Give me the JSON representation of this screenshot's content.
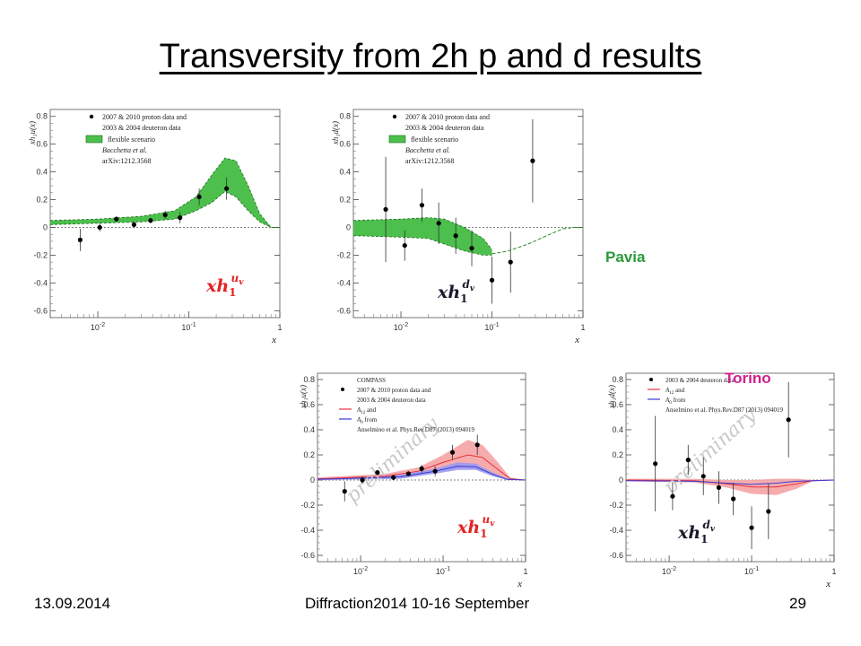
{
  "slide": {
    "title": "Transversity from 2h p and d results",
    "footer_date": "13.09.2014",
    "footer_conference": "Diffraction2014 10-16 September",
    "footer_page": "29",
    "label_pavia": "Pavia",
    "label_torino": "Torino"
  },
  "colors": {
    "pavia_band": "#4cbf4c",
    "torino_band_proton": "#f5a3a3",
    "torino_band_deuteron_blue": "#9a9af0",
    "curve_red": "#e8303a",
    "curve_blue": "#3a3ad8",
    "label_red": "#e52222",
    "label_dark": "#1a1a2e"
  },
  "chart_data": [
    {
      "type": "scatter",
      "panel": "pavia-proton",
      "xscale": "log",
      "xlim": [
        0.003,
        1
      ],
      "ylim": [
        -0.65,
        0.85
      ],
      "xlabel": "x",
      "ylabel": "xh_1^u(x)",
      "xticklabels": [
        "10^-2",
        "10^-1",
        "1"
      ],
      "yticks": [
        -0.6,
        -0.4,
        -0.2,
        0,
        0.2,
        0.4,
        0.6,
        0.8
      ],
      "yticklabels": [
        "-0.6",
        "-0.4",
        "-0.2",
        "0",
        "0.2",
        "0.4",
        "0.6",
        "0.8"
      ],
      "legend": [
        "2007 & 2010 proton data and",
        "2003 & 2004 deuteron data",
        "flexible scenario",
        "Bacchetta et al.",
        "arXiv:1212.3568"
      ],
      "annotation": {
        "main": "xh",
        "sub": "1",
        "sup": "u",
        "sup_sub": "v"
      },
      "points": [
        {
          "x": 0.0064,
          "y": -0.09,
          "err": 0.08
        },
        {
          "x": 0.0105,
          "y": 0.0,
          "err": 0.03
        },
        {
          "x": 0.016,
          "y": 0.06,
          "err": 0.02
        },
        {
          "x": 0.025,
          "y": 0.02,
          "err": 0.02
        },
        {
          "x": 0.038,
          "y": 0.05,
          "err": 0.02
        },
        {
          "x": 0.055,
          "y": 0.09,
          "err": 0.03
        },
        {
          "x": 0.08,
          "y": 0.07,
          "err": 0.04
        },
        {
          "x": 0.13,
          "y": 0.22,
          "err": 0.06
        },
        {
          "x": 0.26,
          "y": 0.28,
          "err": 0.08
        }
      ],
      "band": [
        {
          "x": 0.003,
          "lo": 0.02,
          "hi": 0.05
        },
        {
          "x": 0.01,
          "lo": 0.03,
          "hi": 0.06
        },
        {
          "x": 0.03,
          "lo": 0.04,
          "hi": 0.08
        },
        {
          "x": 0.07,
          "lo": 0.06,
          "hi": 0.12
        },
        {
          "x": 0.12,
          "lo": 0.12,
          "hi": 0.22
        },
        {
          "x": 0.18,
          "lo": 0.18,
          "hi": 0.38
        },
        {
          "x": 0.25,
          "lo": 0.26,
          "hi": 0.5
        },
        {
          "x": 0.33,
          "lo": 0.22,
          "hi": 0.48
        },
        {
          "x": 0.45,
          "lo": 0.12,
          "hi": 0.3
        },
        {
          "x": 0.6,
          "lo": 0.04,
          "hi": 0.1
        },
        {
          "x": 0.8,
          "lo": 0.0,
          "hi": 0.0
        },
        {
          "x": 1.0,
          "lo": 0.0,
          "hi": 0.0
        }
      ]
    },
    {
      "type": "scatter",
      "panel": "pavia-deuteron",
      "xscale": "log",
      "xlim": [
        0.003,
        1
      ],
      "ylim": [
        -0.65,
        0.85
      ],
      "xlabel": "x",
      "ylabel": "xh_1^d(x)",
      "xticklabels": [
        "10^-2",
        "10^-1",
        "1"
      ],
      "yticks": [
        -0.6,
        -0.4,
        -0.2,
        0,
        0.2,
        0.4,
        0.6,
        0.8
      ],
      "yticklabels": [
        "-0.6",
        "-0.4",
        "-0.2",
        "0",
        "0.2",
        "0.4",
        "0.6",
        "0.8"
      ],
      "legend": [
        "2007 & 2010 proton data and",
        "2003 & 2004 deuteron data",
        "flexible scenario",
        "Bacchetta et al.",
        "arXiv:1212.3568"
      ],
      "annotation": {
        "main": "xh",
        "sub": "1",
        "sup": "d",
        "sup_sub": "v"
      },
      "points": [
        {
          "x": 0.0068,
          "y": 0.13,
          "err": 0.38
        },
        {
          "x": 0.011,
          "y": -0.13,
          "err": 0.11
        },
        {
          "x": 0.017,
          "y": 0.16,
          "err": 0.12
        },
        {
          "x": 0.026,
          "y": 0.03,
          "err": 0.15
        },
        {
          "x": 0.04,
          "y": -0.06,
          "err": 0.13
        },
        {
          "x": 0.06,
          "y": -0.15,
          "err": 0.13
        },
        {
          "x": 0.1,
          "y": -0.38,
          "err": 0.17
        },
        {
          "x": 0.16,
          "y": -0.25,
          "err": 0.22
        },
        {
          "x": 0.28,
          "y": 0.48,
          "err": 0.3
        }
      ],
      "band": [
        {
          "x": 0.003,
          "lo": -0.06,
          "hi": 0.05
        },
        {
          "x": 0.01,
          "lo": -0.07,
          "hi": 0.06
        },
        {
          "x": 0.02,
          "lo": -0.08,
          "hi": 0.07
        },
        {
          "x": 0.03,
          "lo": -0.12,
          "hi": 0.06
        },
        {
          "x": 0.05,
          "lo": -0.17,
          "hi": 0.0
        },
        {
          "x": 0.08,
          "lo": -0.2,
          "hi": -0.08
        },
        {
          "x": 0.1,
          "lo": -0.2,
          "hi": -0.16
        }
      ],
      "dashed_tail": [
        {
          "x": 0.1,
          "y": -0.19
        },
        {
          "x": 0.15,
          "y": -0.17
        },
        {
          "x": 0.25,
          "y": -0.12
        },
        {
          "x": 0.4,
          "y": -0.06
        },
        {
          "x": 0.6,
          "y": -0.01
        },
        {
          "x": 0.8,
          "y": 0.0
        },
        {
          "x": 1.0,
          "y": 0.0
        }
      ]
    },
    {
      "type": "scatter",
      "panel": "torino-proton",
      "xscale": "log",
      "xlim": [
        0.003,
        1
      ],
      "ylim": [
        -0.65,
        0.85
      ],
      "xlabel": "x",
      "ylabel": "xh_1^u(x)",
      "xticklabels": [
        "10^-2",
        "10^-1",
        "1"
      ],
      "yticks": [
        -0.6,
        -0.4,
        -0.2,
        0,
        0.2,
        0.4,
        0.6,
        0.8
      ],
      "yticklabels": [
        "-0.6",
        "-0.4",
        "-0.2",
        "0",
        "0.2",
        "0.4",
        "0.6",
        "0.8"
      ],
      "legend": [
        "COMPASS",
        "2007 & 2010 proton data and",
        "2003 & 2004 deuteron data",
        "A_12 and",
        "A_0 from",
        "Anselmino et al. Phys.Rev.D87 (2013) 094019"
      ],
      "watermark": "preliminary",
      "annotation": {
        "main": "xh",
        "sub": "1",
        "sup": "u",
        "sup_sub": "v"
      },
      "points": [
        {
          "x": 0.0064,
          "y": -0.09,
          "err": 0.08
        },
        {
          "x": 0.0105,
          "y": 0.0,
          "err": 0.03
        },
        {
          "x": 0.016,
          "y": 0.06,
          "err": 0.02
        },
        {
          "x": 0.025,
          "y": 0.02,
          "err": 0.02
        },
        {
          "x": 0.038,
          "y": 0.05,
          "err": 0.02
        },
        {
          "x": 0.055,
          "y": 0.09,
          "err": 0.03
        },
        {
          "x": 0.08,
          "y": 0.07,
          "err": 0.04
        },
        {
          "x": 0.13,
          "y": 0.22,
          "err": 0.06
        },
        {
          "x": 0.26,
          "y": 0.28,
          "err": 0.08
        }
      ],
      "band_red": [
        {
          "x": 0.003,
          "lo": 0.0,
          "hi": 0.02
        },
        {
          "x": 0.02,
          "lo": 0.01,
          "hi": 0.05
        },
        {
          "x": 0.05,
          "lo": 0.04,
          "hi": 0.1
        },
        {
          "x": 0.1,
          "lo": 0.08,
          "hi": 0.2
        },
        {
          "x": 0.2,
          "lo": 0.1,
          "hi": 0.32
        },
        {
          "x": 0.3,
          "lo": 0.08,
          "hi": 0.28
        },
        {
          "x": 0.45,
          "lo": 0.03,
          "hi": 0.15
        },
        {
          "x": 0.65,
          "lo": 0.0,
          "hi": 0.02
        },
        {
          "x": 1.0,
          "lo": 0.0,
          "hi": 0.0
        }
      ],
      "band_blue": [
        {
          "x": 0.003,
          "lo": 0.0,
          "hi": 0.01
        },
        {
          "x": 0.03,
          "lo": 0.01,
          "hi": 0.04
        },
        {
          "x": 0.08,
          "lo": 0.05,
          "hi": 0.09
        },
        {
          "x": 0.15,
          "lo": 0.08,
          "hi": 0.14
        },
        {
          "x": 0.25,
          "lo": 0.08,
          "hi": 0.13
        },
        {
          "x": 0.4,
          "lo": 0.03,
          "hi": 0.06
        },
        {
          "x": 0.6,
          "lo": 0.0,
          "hi": 0.01
        },
        {
          "x": 1.0,
          "lo": 0.0,
          "hi": 0.0
        }
      ],
      "curve_red": [
        {
          "x": 0.003,
          "y": 0.01
        },
        {
          "x": 0.02,
          "y": 0.03
        },
        {
          "x": 0.05,
          "y": 0.07
        },
        {
          "x": 0.1,
          "y": 0.14
        },
        {
          "x": 0.2,
          "y": 0.2
        },
        {
          "x": 0.3,
          "y": 0.18
        },
        {
          "x": 0.45,
          "y": 0.09
        },
        {
          "x": 0.65,
          "y": 0.01
        },
        {
          "x": 1.0,
          "y": 0.0
        }
      ],
      "curve_blue": [
        {
          "x": 0.003,
          "y": 0.005
        },
        {
          "x": 0.03,
          "y": 0.025
        },
        {
          "x": 0.08,
          "y": 0.07
        },
        {
          "x": 0.15,
          "y": 0.11
        },
        {
          "x": 0.25,
          "y": 0.105
        },
        {
          "x": 0.4,
          "y": 0.045
        },
        {
          "x": 0.6,
          "y": 0.005
        },
        {
          "x": 1.0,
          "y": 0.0
        }
      ]
    },
    {
      "type": "scatter",
      "panel": "torino-deuteron",
      "xscale": "log",
      "xlim": [
        0.003,
        1
      ],
      "ylim": [
        -0.65,
        0.85
      ],
      "xlabel": "x",
      "ylabel": "xh_1^d(x)",
      "xticklabels": [
        "10^-2",
        "10^-1",
        "1"
      ],
      "yticks": [
        -0.6,
        -0.4,
        -0.2,
        0,
        0.2,
        0.4,
        0.6,
        0.8
      ],
      "yticklabels": [
        "-0.6",
        "-0.4",
        "-0.2",
        "0",
        "0.2",
        "0.4",
        "0.6",
        "0.8"
      ],
      "legend": [
        "2003 & 2004 deuteron data",
        "A_12 and",
        "A_0 from",
        "Anselmino et al. Phys.Rev.D87 (2013) 094019"
      ],
      "watermark": "preliminary",
      "annotation": {
        "main": "xh",
        "sub": "1",
        "sup": "d",
        "sup_sub": "v"
      },
      "points": [
        {
          "x": 0.0068,
          "y": 0.13,
          "err": 0.38
        },
        {
          "x": 0.011,
          "y": -0.13,
          "err": 0.11
        },
        {
          "x": 0.017,
          "y": 0.16,
          "err": 0.12
        },
        {
          "x": 0.026,
          "y": 0.03,
          "err": 0.15
        },
        {
          "x": 0.04,
          "y": -0.06,
          "err": 0.13
        },
        {
          "x": 0.06,
          "y": -0.15,
          "err": 0.13
        },
        {
          "x": 0.1,
          "y": -0.38,
          "err": 0.17
        },
        {
          "x": 0.16,
          "y": -0.25,
          "err": 0.22
        },
        {
          "x": 0.28,
          "y": 0.48,
          "err": 0.3
        }
      ],
      "band_red": [
        {
          "x": 0.003,
          "lo": -0.01,
          "hi": 0.01
        },
        {
          "x": 0.02,
          "lo": -0.02,
          "hi": 0.01
        },
        {
          "x": 0.05,
          "lo": -0.06,
          "hi": 0.0
        },
        {
          "x": 0.1,
          "lo": -0.11,
          "hi": 0.0
        },
        {
          "x": 0.2,
          "lo": -0.12,
          "hi": 0.01
        },
        {
          "x": 0.35,
          "lo": -0.07,
          "hi": 0.01
        },
        {
          "x": 0.55,
          "lo": -0.01,
          "hi": 0.0
        },
        {
          "x": 1.0,
          "lo": 0.0,
          "hi": 0.0
        }
      ],
      "curve_red": [
        {
          "x": 0.003,
          "y": 0.0
        },
        {
          "x": 0.02,
          "y": -0.005
        },
        {
          "x": 0.05,
          "y": -0.03
        },
        {
          "x": 0.1,
          "y": -0.055
        },
        {
          "x": 0.2,
          "y": -0.055
        },
        {
          "x": 0.35,
          "y": -0.03
        },
        {
          "x": 0.55,
          "y": -0.005
        },
        {
          "x": 1.0,
          "y": 0.0
        }
      ],
      "curve_blue": [
        {
          "x": 0.003,
          "y": -0.005
        },
        {
          "x": 0.02,
          "y": -0.01
        },
        {
          "x": 0.05,
          "y": -0.025
        },
        {
          "x": 0.1,
          "y": -0.035
        },
        {
          "x": 0.2,
          "y": -0.025
        },
        {
          "x": 0.35,
          "y": -0.01
        },
        {
          "x": 1.0,
          "y": 0.0
        }
      ]
    }
  ]
}
